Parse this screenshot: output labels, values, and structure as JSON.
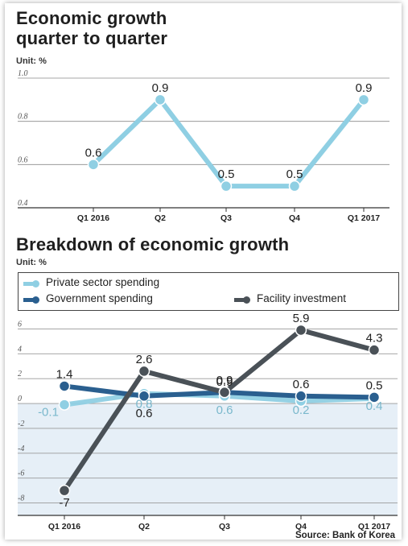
{
  "chart_data": [
    {
      "type": "line",
      "title": "Economic growth\nquarter to quarter",
      "title_line1": "Economic growth",
      "title_line2": "quarter to quarter",
      "unit": "Unit: %",
      "categories": [
        "Q1 2016",
        "Q2",
        "Q3",
        "Q4",
        "Q1 2017"
      ],
      "yticks": [
        "0.4",
        "0.6",
        "0.8",
        "1.0"
      ],
      "ylim": [
        0.4,
        1.0
      ],
      "series": [
        {
          "values": [
            0.6,
            0.9,
            0.5,
            0.5,
            0.9
          ],
          "labels": [
            "0.6",
            "0.9",
            "0.5",
            "0.5",
            "0.9"
          ],
          "color": "#8fcfe3"
        }
      ],
      "grid": true
    },
    {
      "type": "line",
      "title": "Breakdown of economic growth",
      "unit": "Unit: %",
      "categories": [
        "Q1 2016",
        "Q2",
        "Q3",
        "Q4",
        "Q1 2017"
      ],
      "yticks": [
        "6",
        "4",
        "2",
        "0",
        "-2",
        "-4",
        "-6",
        "-8"
      ],
      "ylim": [
        -9,
        7
      ],
      "legend": "top",
      "series": [
        {
          "name": "Private sector spending",
          "color": "#8fcfe3",
          "values": [
            -0.1,
            0.8,
            0.6,
            0.2,
            0.4
          ],
          "labels": [
            "-0.1",
            "0.8",
            "0.6",
            "0.2",
            "0.4"
          ]
        },
        {
          "name": "Government spending",
          "color": "#2a5f8f",
          "values": [
            1.4,
            0.6,
            0.9,
            0.6,
            0.5
          ],
          "labels": [
            "1.4",
            "0.6",
            "0.9",
            "0.6",
            "0.5"
          ]
        },
        {
          "name": "Facility investment",
          "color": "#4a5157",
          "values": [
            -7,
            2.6,
            0.9,
            5.9,
            4.3
          ],
          "labels": [
            "-7",
            "2.6",
            "0.9",
            "5.9",
            "4.3"
          ]
        }
      ],
      "source": "Source: Bank of Korea",
      "grid": true
    }
  ]
}
